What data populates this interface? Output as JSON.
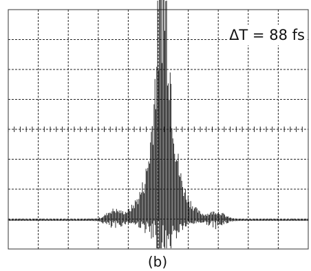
{
  "annotation": "ΔT = 88 fs",
  "caption": "(b)"
}
